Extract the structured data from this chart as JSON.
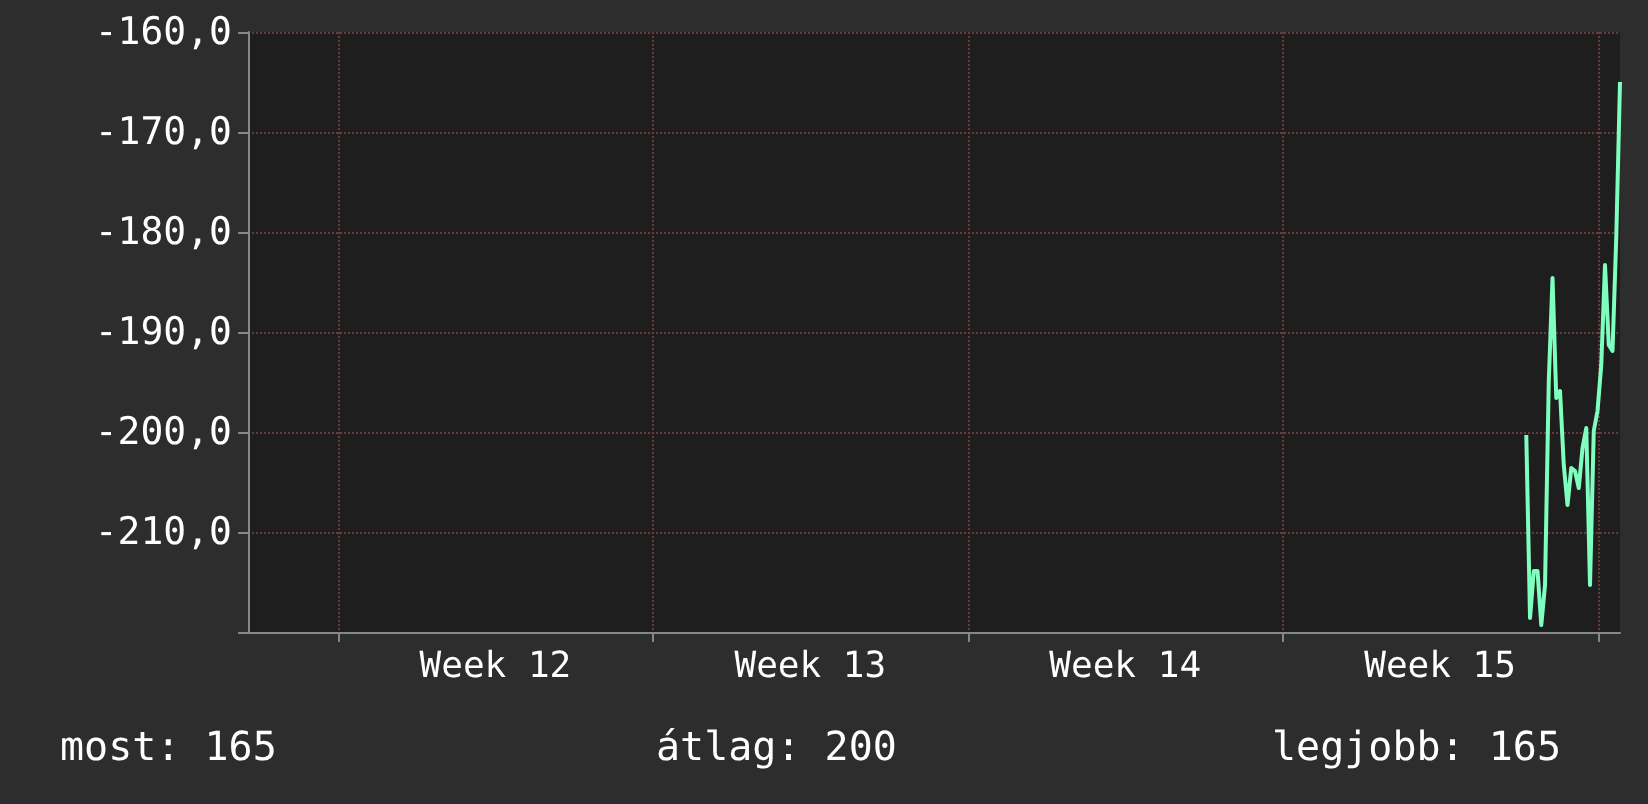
{
  "chart_data": {
    "type": "line",
    "categories": [
      null,
      null,
      null,
      null,
      null,
      null,
      null,
      null,
      null,
      null,
      null,
      null,
      null,
      null,
      null,
      null,
      null,
      null,
      null,
      null,
      null,
      null,
      null,
      null,
      null,
      null,
      null,
      null,
      null,
      null,
      null,
      null,
      null,
      null,
      null,
      null,
      null,
      null,
      null,
      null,
      null,
      null,
      null,
      null,
      null,
      null,
      null,
      null,
      null,
      null,
      null,
      null,
      null,
      null,
      null,
      null,
      null,
      null,
      null,
      null,
      null,
      null,
      null,
      null,
      null,
      null,
      "Week 12",
      null,
      null,
      null,
      null,
      null,
      null,
      null,
      null,
      null,
      null,
      null,
      null,
      null,
      null,
      null,
      null,
      null,
      null,
      null,
      null,
      null,
      null,
      null,
      null,
      null,
      null,
      null,
      null,
      null,
      null,
      null,
      null,
      null,
      null,
      null,
      null,
      null,
      null,
      null,
      null,
      null,
      null,
      null,
      null,
      null,
      null,
      null,
      null,
      null,
      null,
      null,
      null,
      null,
      null,
      null,
      null,
      null,
      null,
      null,
      null,
      null,
      null,
      null,
      null,
      null,
      null,
      null,
      null,
      null,
      null,
      null,
      null,
      null,
      null,
      null,
      null,
      null,
      null,
      null,
      null,
      null,
      null,
      null,
      "Week 13",
      null,
      null,
      null,
      null,
      null,
      null,
      null,
      null,
      null,
      null,
      null,
      null,
      null,
      null,
      null,
      null,
      null,
      null,
      null,
      null,
      null,
      null,
      null,
      null,
      null,
      null,
      null,
      null,
      null,
      null,
      null,
      null,
      null,
      null,
      null,
      null,
      null,
      null,
      null,
      null,
      null,
      null,
      null,
      null,
      null,
      null,
      null,
      null,
      null,
      null,
      null,
      null,
      null,
      null,
      null,
      null,
      null,
      null,
      null,
      null,
      null,
      null,
      null,
      null,
      null,
      null,
      null,
      null,
      null,
      null,
      null,
      null,
      null,
      null,
      null,
      null,
      null,
      null,
      null,
      null,
      null,
      null,
      null,
      "Week 14",
      null,
      null,
      null,
      null,
      null,
      null,
      null,
      null,
      null,
      null,
      null,
      null,
      null,
      null,
      null,
      null,
      null,
      null,
      null,
      null,
      null,
      null,
      null,
      null,
      null,
      null,
      null,
      null,
      null,
      null,
      null,
      null,
      null,
      null,
      null,
      null,
      null,
      null,
      null,
      null,
      null,
      null,
      null,
      null,
      null,
      null,
      null,
      null,
      null,
      null,
      null,
      null,
      null,
      null,
      null,
      null,
      null,
      null,
      null,
      null,
      null,
      null,
      null,
      null,
      null,
      null,
      null,
      null,
      null,
      null,
      null,
      null,
      null,
      null,
      null,
      null,
      null,
      null,
      null,
      null,
      null,
      null,
      null,
      "Week 15",
      null,
      null,
      null,
      null,
      null,
      null,
      null,
      null,
      null,
      null,
      null,
      null,
      null,
      null,
      null,
      null,
      null,
      null,
      null,
      null,
      null,
      null,
      null,
      null,
      null,
      null,
      null,
      null,
      null,
      null,
      null,
      null,
      null,
      null,
      null,
      null,
      null,
      null,
      null,
      null,
      null,
      null,
      null,
      null,
      null,
      null,
      null,
      null
    ],
    "series": [
      {
        "color": "#7fffbf",
        "values": [
          null,
          null,
          null,
          null,
          null,
          null,
          null,
          null,
          null,
          null,
          null,
          null,
          null,
          null,
          null,
          null,
          null,
          null,
          null,
          null,
          null,
          null,
          null,
          null,
          null,
          null,
          null,
          null,
          null,
          null,
          null,
          null,
          null,
          null,
          null,
          null,
          null,
          null,
          null,
          null,
          null,
          null,
          null,
          null,
          null,
          null,
          null,
          null,
          null,
          null,
          null,
          null,
          null,
          null,
          null,
          null,
          null,
          null,
          null,
          null,
          null,
          null,
          null,
          null,
          null,
          null,
          null,
          null,
          null,
          null,
          null,
          null,
          null,
          null,
          null,
          null,
          null,
          null,
          null,
          null,
          null,
          null,
          null,
          null,
          null,
          null,
          null,
          null,
          null,
          null,
          null,
          null,
          null,
          null,
          null,
          null,
          null,
          null,
          null,
          null,
          null,
          null,
          null,
          null,
          null,
          null,
          null,
          null,
          null,
          null,
          null,
          null,
          null,
          null,
          null,
          null,
          null,
          null,
          null,
          null,
          null,
          null,
          null,
          null,
          null,
          null,
          null,
          null,
          null,
          null,
          null,
          null,
          null,
          null,
          null,
          null,
          null,
          null,
          null,
          null,
          null,
          null,
          null,
          null,
          null,
          null,
          null,
          null,
          null,
          null,
          null,
          null,
          null,
          null,
          null,
          null,
          null,
          null,
          null,
          null,
          null,
          null,
          null,
          null,
          null,
          null,
          null,
          null,
          null,
          null,
          null,
          null,
          null,
          null,
          null,
          null,
          null,
          null,
          null,
          null,
          null,
          null,
          null,
          null,
          null,
          null,
          null,
          null,
          null,
          null,
          null,
          null,
          null,
          null,
          null,
          null,
          null,
          null,
          null,
          null,
          null,
          null,
          null,
          null,
          null,
          null,
          null,
          null,
          null,
          null,
          null,
          null,
          null,
          null,
          null,
          null,
          null,
          null,
          null,
          null,
          null,
          null,
          null,
          null,
          null,
          null,
          null,
          null,
          null,
          null,
          null,
          null,
          null,
          null,
          null,
          null,
          null,
          null,
          null,
          null,
          null,
          null,
          null,
          null,
          null,
          null,
          null,
          null,
          null,
          null,
          null,
          null,
          null,
          null,
          null,
          null,
          null,
          null,
          null,
          null,
          null,
          null,
          null,
          null,
          null,
          null,
          null,
          null,
          null,
          null,
          null,
          null,
          null,
          null,
          null,
          null,
          null,
          null,
          null,
          null,
          null,
          null,
          null,
          null,
          null,
          null,
          null,
          null,
          null,
          null,
          null,
          null,
          null,
          null,
          null,
          null,
          null,
          null,
          null,
          null,
          null,
          null,
          null,
          null,
          null,
          null,
          null,
          null,
          null,
          null,
          null,
          null,
          null,
          null,
          null,
          null,
          null,
          null,
          null,
          null,
          null,
          null,
          null,
          null,
          null,
          null,
          null,
          null,
          null,
          null,
          null,
          null,
          null,
          null,
          null,
          null,
          null,
          null,
          null,
          null,
          null,
          -200.3,
          -218.6,
          -213.9,
          -213.9,
          -219.3,
          -215.3,
          -194.9,
          -184.6,
          -196.6,
          -195.9,
          -203.3,
          -207.3,
          -203.6,
          -203.9,
          -205.6,
          -201.6,
          -199.6,
          -215.3,
          -199.9,
          -197.9,
          -193.3,
          -183.3,
          -191.3,
          -191.9,
          -180.6,
          -165.0
        ]
      }
    ],
    "ylim": [
      -220,
      -160
    ],
    "yticks": [
      {
        "value": -220,
        "label": null
      },
      {
        "value": -210,
        "label": "-210,0"
      },
      {
        "value": -200,
        "label": "-200,0"
      },
      {
        "value": -190,
        "label": "-190,0"
      },
      {
        "value": -180,
        "label": "-180,0"
      },
      {
        "value": -170,
        "label": "-170,0"
      },
      {
        "value": -160,
        "label": "-160,0"
      }
    ],
    "grid": true,
    "marker": "none",
    "line_style": "solid",
    "annotations": [
      "most: 165",
      "átlag: 200",
      "legjobb: 165"
    ]
  }
}
